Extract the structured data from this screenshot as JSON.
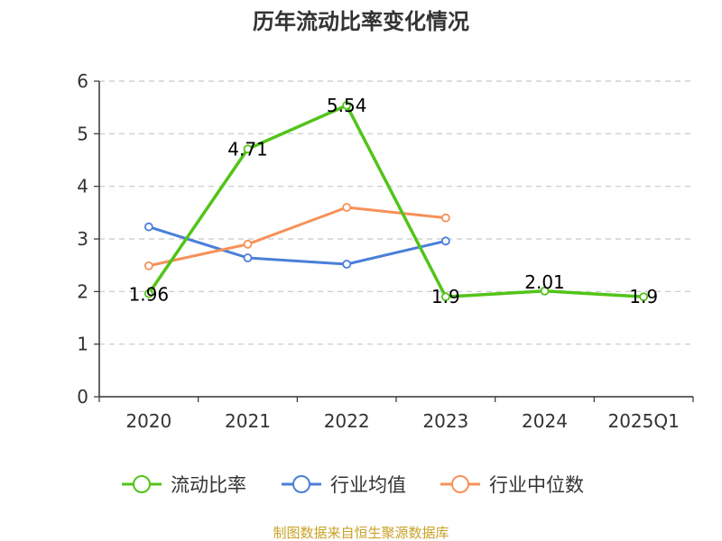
{
  "chart_data": {
    "type": "line",
    "title": "历年流动比率变化情况",
    "categories": [
      "2020",
      "2021",
      "2022",
      "2023",
      "2024",
      "2025Q1"
    ],
    "ylim": [
      0,
      6
    ],
    "yticks": [
      "0",
      "1",
      "2",
      "3",
      "4",
      "5",
      "6"
    ],
    "grid": true,
    "legend_position": "bottom",
    "series": [
      {
        "name": "流动比率",
        "color": "#52c41a",
        "values": [
          1.96,
          4.71,
          5.54,
          1.9,
          2.01,
          1.9
        ],
        "labels": [
          "1.96",
          "4.71",
          "5.54",
          "1.9",
          "2.01",
          "1.9"
        ]
      },
      {
        "name": "行业均值",
        "color": "#4a7fd8",
        "values": [
          3.23,
          2.64,
          2.52,
          2.96,
          null,
          null
        ]
      },
      {
        "name": "行业中位数",
        "color": "#f79158",
        "values": [
          2.49,
          2.9,
          3.6,
          3.4,
          null,
          null
        ]
      }
    ],
    "source": "制图数据来自恒生聚源数据库"
  }
}
